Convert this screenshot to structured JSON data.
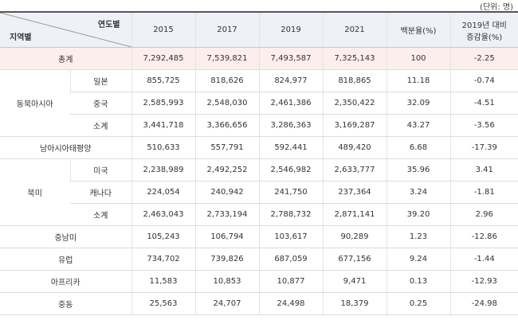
{
  "unit": "(단위: 명)",
  "header": {
    "year_label": "연도별",
    "region_label": "지역별",
    "columns": [
      "2015",
      "2017",
      "2019",
      "2021",
      "백분율(%)"
    ],
    "change_header": [
      "2019년 대비",
      "증감율(%)"
    ]
  },
  "rows": [
    {
      "label": "총계",
      "values": [
        "7,292,485",
        "7,539,821",
        "7,493,587",
        "7,325,143",
        "100",
        "-2.25"
      ]
    },
    {
      "group": "동북아시아",
      "subrows": [
        {
          "label": "일본",
          "values": [
            "855,725",
            "818,626",
            "824,977",
            "818,865",
            "11.18",
            "-0.74"
          ]
        },
        {
          "label": "중국",
          "values": [
            "2,585,993",
            "2,548,030",
            "2,461,386",
            "2,350,422",
            "32.09",
            "-4.51"
          ]
        },
        {
          "label": "소계",
          "values": [
            "3,441,718",
            "3,366,656",
            "3,286,363",
            "3,169,287",
            "43.27",
            "-3.56"
          ]
        }
      ]
    },
    {
      "label": "남아시아태평양",
      "values": [
        "510,633",
        "557,791",
        "592,441",
        "489,420",
        "6.68",
        "-17.39"
      ]
    },
    {
      "group": "북미",
      "subrows": [
        {
          "label": "미국",
          "values": [
            "2,238,989",
            "2,492,252",
            "2,546,982",
            "2,633,777",
            "35.96",
            "3.41"
          ]
        },
        {
          "label": "캐나다",
          "values": [
            "224,054",
            "240,942",
            "241,750",
            "237,364",
            "3.24",
            "-1.81"
          ]
        },
        {
          "label": "소계",
          "values": [
            "2,463,043",
            "2,733,194",
            "2,788,732",
            "2,871,141",
            "39.20",
            "2.96"
          ]
        }
      ]
    },
    {
      "label": "중남미",
      "values": [
        "105,243",
        "106,794",
        "103,617",
        "90,289",
        "1.23",
        "-12.86"
      ]
    },
    {
      "label": "유럽",
      "values": [
        "734,702",
        "739,826",
        "687,059",
        "677,156",
        "9.24",
        "-1.44"
      ]
    },
    {
      "label": "아프리카",
      "values": [
        "11,583",
        "10,853",
        "10,877",
        "9,471",
        "0.13",
        "-12.93"
      ]
    },
    {
      "label": "중동",
      "values": [
        "25,563",
        "24,707",
        "24,498",
        "18,379",
        "0.25",
        "-24.98"
      ]
    }
  ]
}
